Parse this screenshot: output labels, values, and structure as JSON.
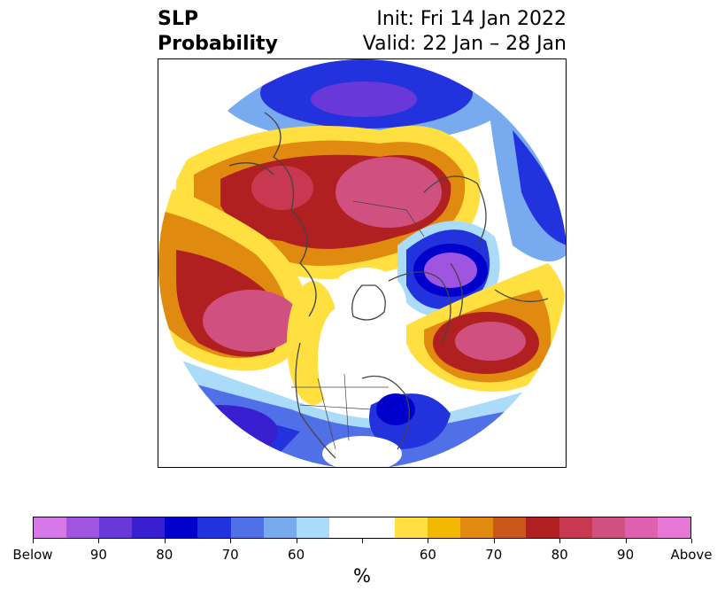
{
  "header": {
    "title_line1": "SLP",
    "title_line2": "Probability",
    "init": "Init: Fri 14 Jan 2022",
    "valid": "Valid: 22 Jan – 28 Jan"
  },
  "colorbar": {
    "unit": "%",
    "tick_labels": [
      "Below",
      "90",
      "80",
      "70",
      "60",
      "",
      "60",
      "70",
      "80",
      "90",
      "Above"
    ],
    "colors": [
      "#d678e8",
      "#a055e0",
      "#6a38d8",
      "#3a1fd0",
      "#0000cc",
      "#2233dd",
      "#5070e8",
      "#78aaf0",
      "#aadcfa",
      "#ffffff",
      "#ffffff",
      "#ffe040",
      "#f2b800",
      "#e08a10",
      "#c85818",
      "#b02020",
      "#c83850",
      "#d05080",
      "#e060b0",
      "#e878d8"
    ],
    "below_label": "Below",
    "above_label": "Above"
  },
  "colors": {
    "land_lines": "#444444",
    "border": "#000000"
  }
}
